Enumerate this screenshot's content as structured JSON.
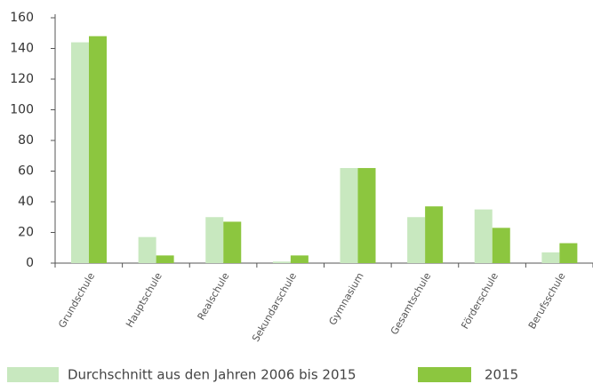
{
  "chart_data": {
    "type": "bar",
    "categories": [
      "Grundschule",
      "Hauptschule",
      "Realschule",
      "Sekundarschule",
      "Gymnasium",
      "Gesamtschule",
      "Förderschule",
      "Berufsschule"
    ],
    "series": [
      {
        "name": "Durchschnitt aus den Jahren 2006 bis 2015",
        "color": "#c8e8bf",
        "values": [
          144,
          17,
          30,
          1,
          62,
          30,
          35,
          7
        ]
      },
      {
        "name": "2015",
        "color": "#8cc63f",
        "values": [
          148,
          5,
          27,
          5,
          62,
          37,
          23,
          13
        ]
      }
    ],
    "ylim": [
      0,
      160
    ],
    "yticks": [
      0,
      20,
      40,
      60,
      80,
      100,
      120,
      140,
      160
    ],
    "grid": false
  }
}
